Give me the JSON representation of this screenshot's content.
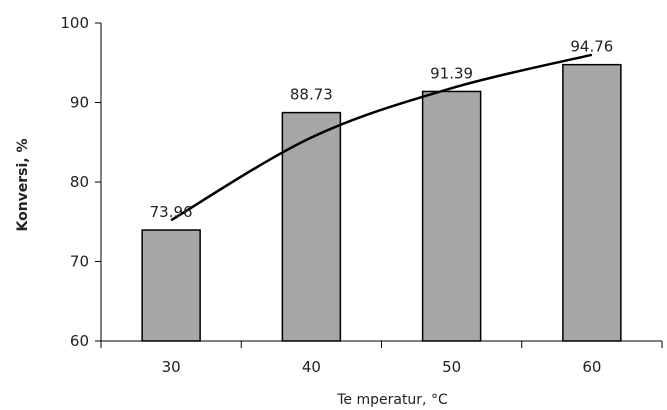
{
  "chart_data": {
    "type": "bar",
    "title": "",
    "xlabel": "Te mperatur, °C",
    "ylabel": "Konversi, %",
    "categories": [
      "30",
      "40",
      "50",
      "60"
    ],
    "series": [
      {
        "values": [
          73.96,
          88.73,
          91.39,
          94.76
        ]
      }
    ],
    "data_labels": [
      "73.96",
      "88.73",
      "91.39",
      "94.76"
    ],
    "trendline": {
      "type": "line",
      "x": [
        "30",
        "40",
        "50",
        "60"
      ],
      "y": [
        75.2,
        85.6,
        91.8,
        96.0
      ]
    },
    "ylim": [
      60,
      100
    ],
    "yticks": [
      "60",
      "70",
      "80",
      "90",
      "100"
    ],
    "grid": false,
    "legend": "none",
    "colors": {
      "bar_fill": "#a6a6a6",
      "bar_stroke": "#000000",
      "trend": "#000000",
      "axis": "#000000"
    }
  }
}
